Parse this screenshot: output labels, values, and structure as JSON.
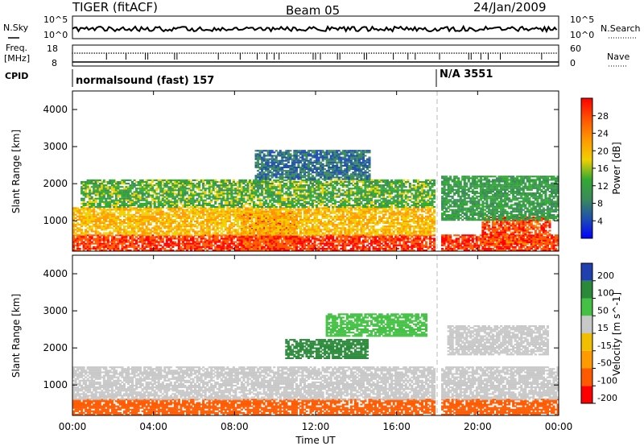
{
  "header": {
    "station": "TIGER (fitACF)",
    "beam": "Beam 05",
    "date": "24/Jan/2009"
  },
  "status_panel": {
    "nsky_label": "N.Sky",
    "nsky_ticks": [
      "10^5",
      "10^0"
    ],
    "nsearch_label": "N.Search",
    "nsearch_ticks": [
      "10^5",
      "10^0"
    ],
    "freq_label_1": "Freq.",
    "freq_label_2": "[MHz]",
    "freq_ticks": [
      "18",
      "8"
    ],
    "nave_label": "Nave",
    "nave_ticks": [
      "60",
      "0"
    ],
    "cpid_label": "CPID",
    "cpid_segments": [
      {
        "start_hour": 0,
        "text": "normalsound (fast) 157"
      },
      {
        "start_hour": 18.0,
        "text": "N/A 3551"
      }
    ]
  },
  "xaxis": {
    "label": "Time UT",
    "ticks": [
      "00:00",
      "04:00",
      "08:00",
      "12:00",
      "16:00",
      "20:00",
      "00:00"
    ],
    "range_hours": [
      0,
      24
    ],
    "data_gap_hour": 18.0
  },
  "colors": {
    "power": [
      "#0000ff",
      "#1f4fb0",
      "#3a8a5a",
      "#33aa33",
      "#f0d000",
      "#ff9a00",
      "#ff5a00",
      "#ff0000"
    ],
    "velocity": [
      "#ff0000",
      "#ff5a00",
      "#ff9a00",
      "#f0c000",
      "#c8c8c8",
      "#44c044",
      "#2a8a3a",
      "#2040b0"
    ]
  },
  "chart_data": [
    {
      "type": "heatmap",
      "title": "Power",
      "ylabel": "Slant Range [km]",
      "ylim": [
        180,
        4500
      ],
      "yticks": [
        "1000",
        "2000",
        "3000",
        "4000"
      ],
      "colorbar_label": "Power [dB]",
      "colorbar_ticks": [
        "28",
        "24",
        "20",
        "16",
        "12",
        "8",
        "4"
      ],
      "colorbar_range": [
        0,
        32
      ],
      "regions": [
        {
          "t0": 0,
          "t1": 24,
          "r0": 180,
          "r1": 600,
          "value": 28
        },
        {
          "t0": 8.3,
          "t1": 11.0,
          "r0": 180,
          "r1": 1250,
          "value": 27
        },
        {
          "t0": 20.2,
          "t1": 23.6,
          "r0": 350,
          "r1": 1100,
          "value": 27
        },
        {
          "t0": 0,
          "t1": 18,
          "r0": 600,
          "r1": 1350,
          "value": 20
        },
        {
          "t0": 0.4,
          "t1": 18,
          "r0": 1350,
          "r1": 2100,
          "value": 14
        },
        {
          "t0": 9.0,
          "t1": 14.6,
          "r0": 2100,
          "r1": 2900,
          "value": 8
        },
        {
          "t0": 18.0,
          "t1": 24,
          "r0": 1000,
          "r1": 2200,
          "value": 12
        }
      ]
    },
    {
      "type": "heatmap",
      "title": "Velocity",
      "ylabel": "Slant Range [km]",
      "ylim": [
        180,
        4500
      ],
      "yticks": [
        "1000",
        "2000",
        "3000",
        "4000"
      ],
      "colorbar_label": "Velocity [m s^-1]",
      "colorbar_ticks": [
        "200",
        "100",
        "50",
        "15",
        "-15",
        "-50",
        "-100",
        "-200"
      ],
      "regions": [
        {
          "t0": 0,
          "t1": 24,
          "r0": 180,
          "r1": 600,
          "value": -60
        },
        {
          "t0": 0,
          "t1": 24,
          "r0": 600,
          "r1": 1500,
          "value": 0
        },
        {
          "t0": 10.5,
          "t1": 14.5,
          "r0": 1700,
          "r1": 2200,
          "value": 120
        },
        {
          "t0": 12.5,
          "t1": 17.5,
          "r0": 2300,
          "r1": 2900,
          "value": 60
        },
        {
          "t0": 18.5,
          "t1": 23.5,
          "r0": 1800,
          "r1": 2600,
          "value": 0
        }
      ]
    }
  ]
}
